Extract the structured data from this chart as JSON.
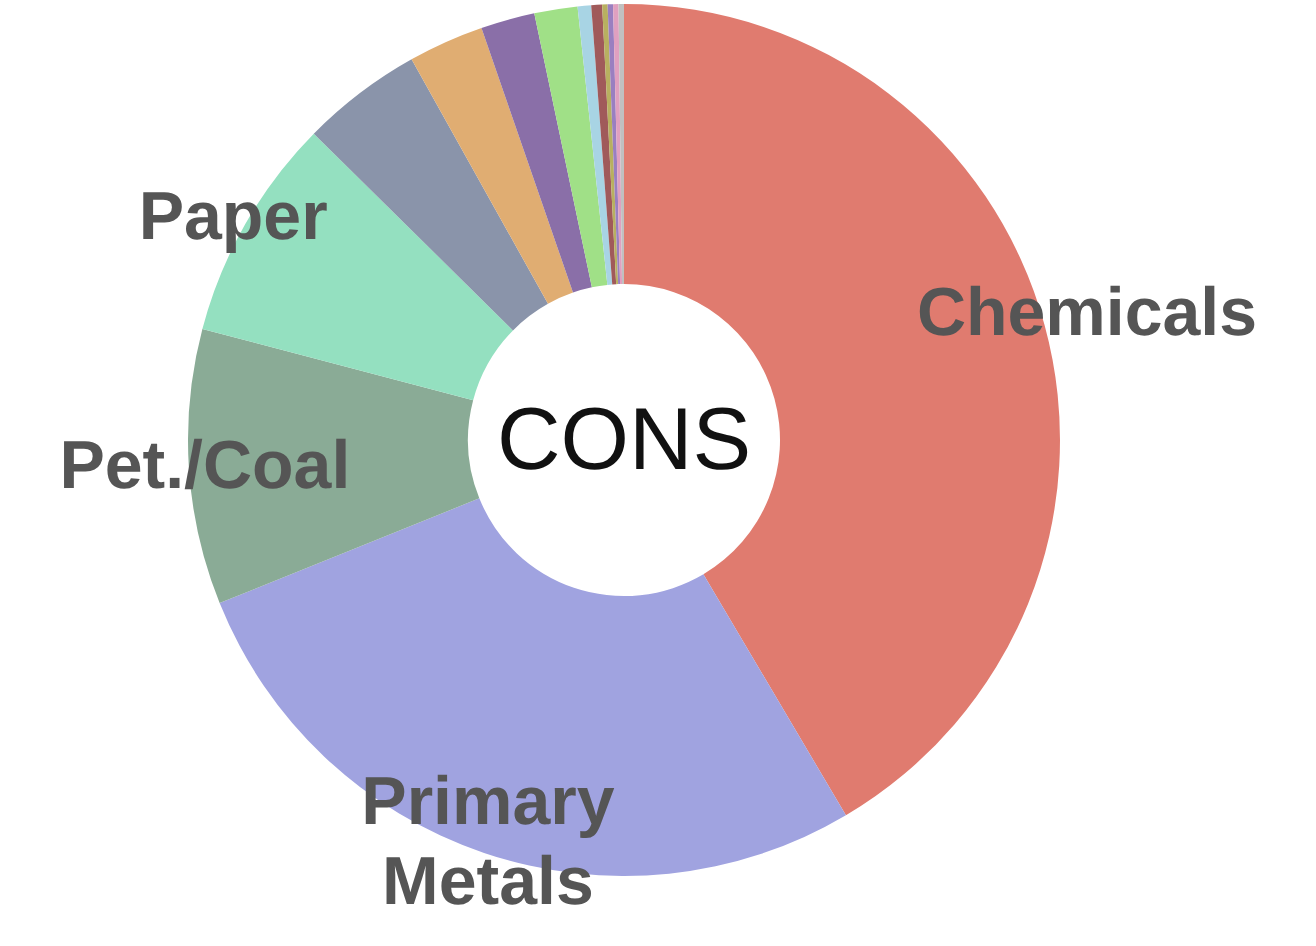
{
  "chart_data": {
    "type": "donut",
    "title": "CONS",
    "categories": [
      "Chemicals",
      "Primary Metals",
      "Pet./Coal",
      "Paper",
      null,
      null,
      null,
      null,
      null,
      null,
      null,
      null,
      null,
      null
    ],
    "values": [
      41.5,
      27.4,
      10.2,
      8.3,
      4.5,
      2.8,
      2.0,
      1.6,
      0.5,
      0.4,
      0.2,
      0.2,
      0.2,
      0.2
    ],
    "colors": [
      "#e07b6f",
      "#a0a3e0",
      "#8aab96",
      "#94e0c0",
      "#8a94aa",
      "#e0ad72",
      "#8a6fa8",
      "#a0e087",
      "#a8d4e4",
      "#a05a5a",
      "#b8b060",
      "#9a7fc0",
      "#e0a0c0",
      "#c0c0c0"
    ]
  }
}
